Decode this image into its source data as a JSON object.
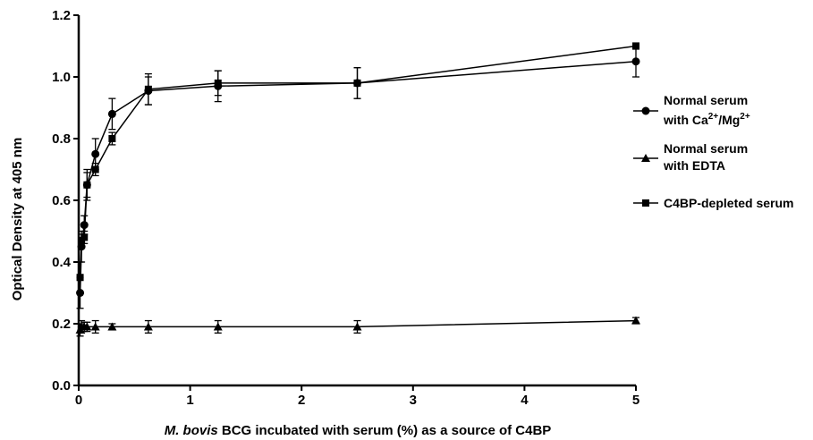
{
  "chart_data": {
    "type": "line",
    "title": "",
    "xlabel_italic": "M. bovis",
    "xlabel_rest": " BCG incubated with serum (%) as a source of C4BP",
    "ylabel": "Optical Density at 405 nm",
    "xlim": [
      0,
      5
    ],
    "ylim": [
      0,
      1.2
    ],
    "x_ticks": [
      0,
      1,
      2,
      3,
      4,
      5
    ],
    "y_ticks": [
      0.0,
      0.2,
      0.4,
      0.6,
      0.8,
      1.0,
      1.2
    ],
    "x_tick_labels": [
      "0",
      "1",
      "2",
      "3",
      "4",
      "5"
    ],
    "y_tick_labels": [
      "0.0",
      "0.2",
      "0.4",
      "0.6",
      "0.8",
      "1.0",
      "1.2"
    ],
    "grid": false,
    "legend_position": "right",
    "series": [
      {
        "key": "normal_ca_mg",
        "marker": "circle",
        "legend_line1": "Normal serum",
        "legend_line2_prefix": " with Ca",
        "legend_sup1": "2+",
        "legend_line2_mid": "/Mg",
        "legend_sup2": "2+",
        "x": [
          0.0125,
          0.025,
          0.05,
          0.075,
          0.15,
          0.3,
          0.625,
          1.25,
          2.5,
          5
        ],
        "y": [
          0.3,
          0.45,
          0.52,
          0.65,
          0.75,
          0.88,
          0.955,
          0.97,
          0.98,
          1.05
        ],
        "err": [
          0.05,
          0.05,
          0.03,
          0.04,
          0.05,
          0.05,
          0.045,
          0.05,
          0.05,
          0.05
        ]
      },
      {
        "key": "normal_edta",
        "marker": "triangle",
        "legend_line1": "Normal serum",
        "legend_line2": "with EDTA",
        "x": [
          0.0125,
          0.025,
          0.05,
          0.075,
          0.15,
          0.3,
          0.625,
          1.25,
          2.5,
          5
        ],
        "y": [
          0.18,
          0.19,
          0.19,
          0.19,
          0.19,
          0.19,
          0.19,
          0.19,
          0.19,
          0.21
        ],
        "err": [
          0.02,
          0.02,
          0.015,
          0.015,
          0.02,
          0.01,
          0.02,
          0.02,
          0.02,
          0.01
        ]
      },
      {
        "key": "c4bp_depleted",
        "marker": "square",
        "legend_line1": "C4BP-depleted serum",
        "x": [
          0.0125,
          0.025,
          0.05,
          0.075,
          0.15,
          0.3,
          0.625,
          1.25,
          2.5,
          5
        ],
        "y": [
          0.35,
          0.47,
          0.48,
          0.65,
          0.7,
          0.8,
          0.96,
          0.98,
          0.98,
          1.1
        ],
        "err": [
          0.05,
          0.02,
          0.02,
          0.05,
          0.02,
          0.02,
          0.05,
          0.04,
          0.05,
          0.01
        ]
      }
    ]
  }
}
